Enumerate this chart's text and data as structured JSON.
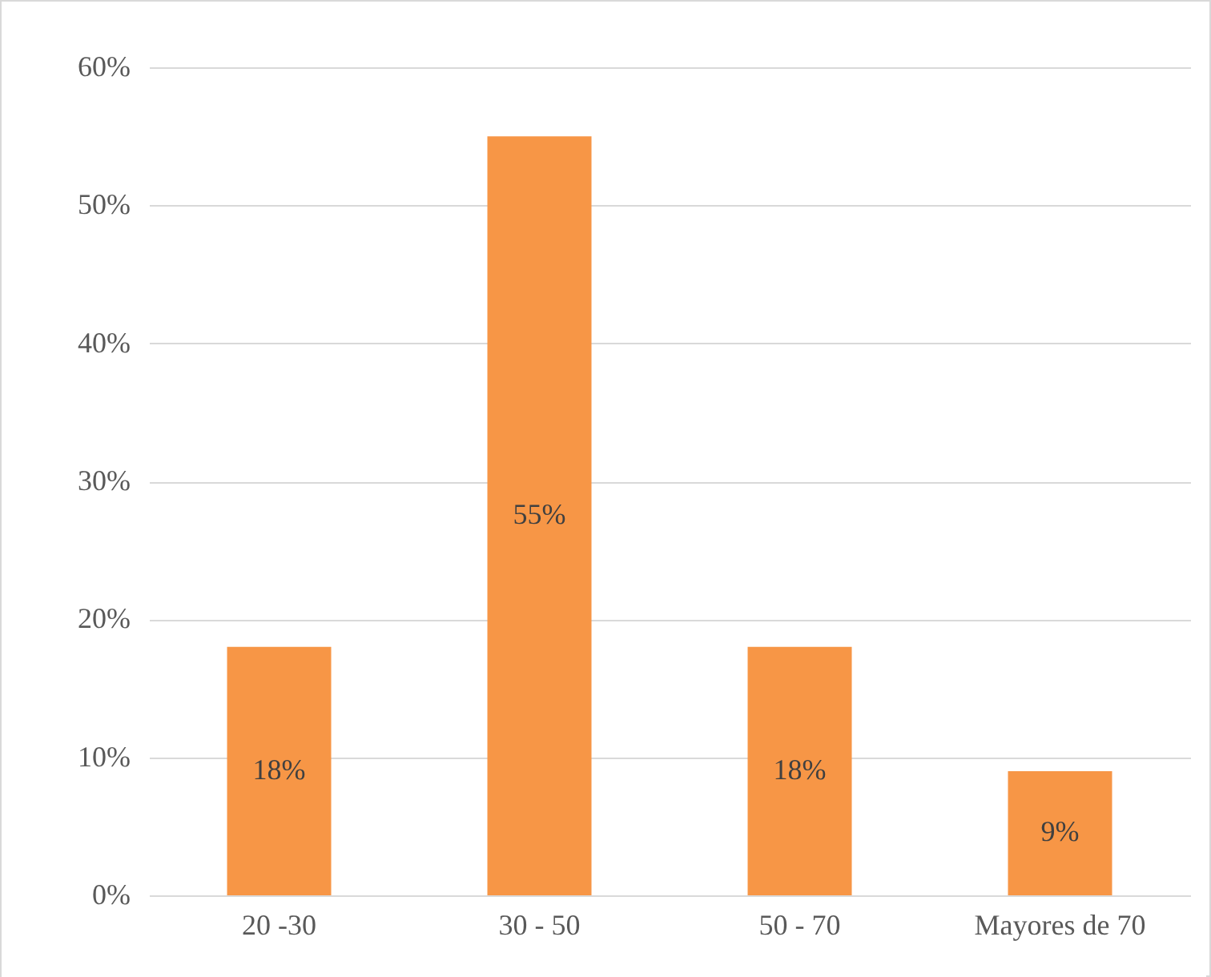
{
  "chart_data": {
    "type": "bar",
    "categories": [
      "20 -30",
      "30 - 50",
      "50 - 70",
      "Mayores de 70"
    ],
    "values": [
      18,
      55,
      18,
      9
    ],
    "value_labels": [
      "18%",
      "55%",
      "18%",
      "9%"
    ],
    "color": "#f79646",
    "ylim": [
      0,
      60
    ],
    "yticks": [
      {
        "value": 0,
        "label": "0%"
      },
      {
        "value": 10,
        "label": "10%"
      },
      {
        "value": 20,
        "label": "20%"
      },
      {
        "value": 30,
        "label": "30%"
      },
      {
        "value": 40,
        "label": "40%"
      },
      {
        "value": 50,
        "label": "50%"
      },
      {
        "value": 60,
        "label": "60%"
      }
    ],
    "grid": "y"
  }
}
